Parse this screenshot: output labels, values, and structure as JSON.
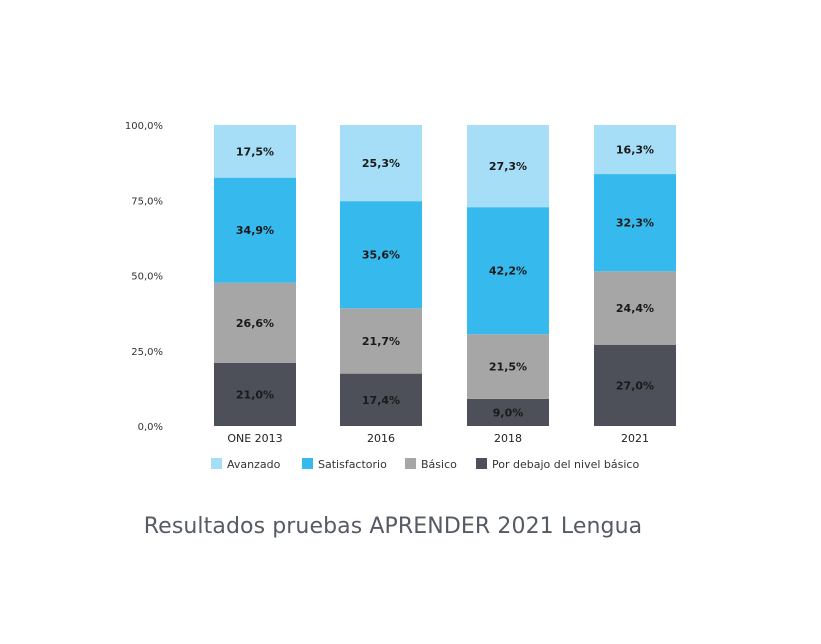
{
  "caption": "Resultados pruebas APRENDER 2021 Lengua",
  "chart_data": {
    "type": "bar",
    "stacked": true,
    "title": "",
    "xlabel": "",
    "ylabel": "",
    "ylim": [
      0,
      100
    ],
    "yticks": [
      "0,0%",
      "25,0%",
      "50,0%",
      "75,0%",
      "100,0%"
    ],
    "categories": [
      "ONE 2013",
      "2016",
      "2018",
      "2021"
    ],
    "legend_position": "bottom",
    "grid": false,
    "series": [
      {
        "name": "Por debajo del nivel básico",
        "color": "#4d5059",
        "values": [
          21.0,
          17.4,
          9.0,
          27.0
        ],
        "labels": [
          "21,0%",
          "17,4%",
          "9,0%",
          "27,0%"
        ]
      },
      {
        "name": "Básico",
        "color": "#a6a6a6",
        "values": [
          26.6,
          21.7,
          21.5,
          24.4
        ],
        "labels": [
          "26,6%",
          "21,7%",
          "21,5%",
          "24,4%"
        ]
      },
      {
        "name": "Satisfactorio",
        "color": "#36b9ed",
        "values": [
          34.9,
          35.6,
          42.2,
          32.3
        ],
        "labels": [
          "34,9%",
          "35,6%",
          "42,2%",
          "32,3%"
        ]
      },
      {
        "name": "Avanzado",
        "color": "#a6def7",
        "values": [
          17.5,
          25.3,
          27.3,
          16.3
        ],
        "labels": [
          "17,5%",
          "25,3%",
          "27,3%",
          "16,3%"
        ]
      }
    ],
    "legend_order": [
      "Avanzado",
      "Satisfactorio",
      "Básico",
      "Por debajo del nivel básico"
    ]
  }
}
